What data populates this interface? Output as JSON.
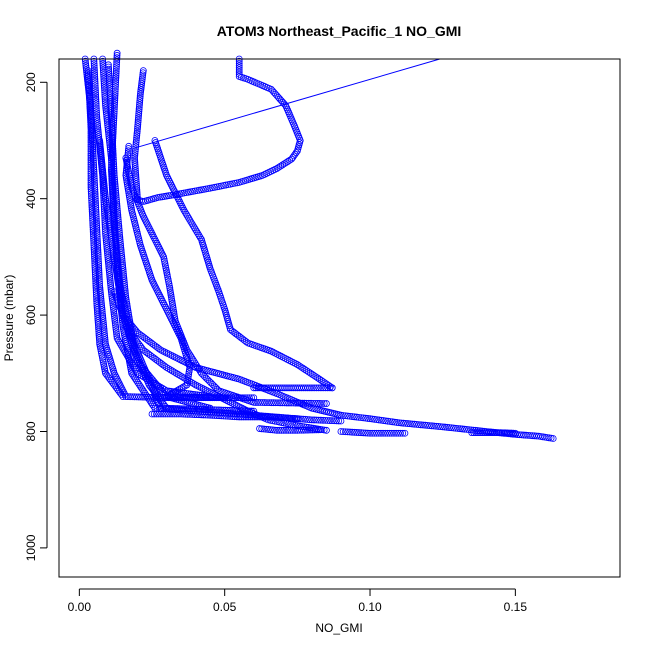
{
  "chart_data": {
    "type": "scatter",
    "title": "ATOM3 Northeast_Pacific_1 NO_GMI",
    "xlabel": "NO_GMI",
    "ylabel": "Pressure (mbar)",
    "xlim": [
      -0.007,
      0.186
    ],
    "ylim": [
      1050,
      160
    ],
    "y_reversed": true,
    "grid": false,
    "legend": "none",
    "marker": "open-circle",
    "color": "#0000ff",
    "x_ticks": [
      {
        "value": 0.0,
        "label": "0.00"
      },
      {
        "value": 0.05,
        "label": "0.05"
      },
      {
        "value": 0.1,
        "label": "0.10"
      },
      {
        "value": 0.15,
        "label": "0.15"
      }
    ],
    "y_ticks": [
      {
        "value": 200,
        "label": "200"
      },
      {
        "value": 400,
        "label": "400"
      },
      {
        "value": 600,
        "label": "600"
      },
      {
        "value": 800,
        "label": "800"
      },
      {
        "value": 1000,
        "label": "1000"
      }
    ],
    "profiles": [
      {
        "points": [
          [
            0.002,
            160
          ],
          [
            0.004,
            250
          ],
          [
            0.005,
            350
          ],
          [
            0.006,
            450
          ],
          [
            0.007,
            550
          ],
          [
            0.009,
            650
          ],
          [
            0.012,
            700
          ],
          [
            0.016,
            740
          ],
          [
            0.03,
            742
          ],
          [
            0.06,
            742
          ]
        ]
      },
      {
        "points": [
          [
            0.005,
            160
          ],
          [
            0.006,
            260
          ],
          [
            0.008,
            360
          ],
          [
            0.009,
            460
          ],
          [
            0.011,
            560
          ],
          [
            0.013,
            640
          ],
          [
            0.02,
            700
          ],
          [
            0.03,
            730
          ],
          [
            0.045,
            740
          ]
        ]
      },
      {
        "points": [
          [
            0.008,
            160
          ],
          [
            0.009,
            240
          ],
          [
            0.011,
            330
          ],
          [
            0.012,
            430
          ],
          [
            0.013,
            520
          ],
          [
            0.015,
            620
          ],
          [
            0.018,
            700
          ],
          [
            0.026,
            760
          ],
          [
            0.055,
            770
          ],
          [
            0.08,
            780
          ],
          [
            0.09,
            782
          ]
        ]
      },
      {
        "points": [
          [
            0.01,
            170
          ],
          [
            0.011,
            260
          ],
          [
            0.012,
            360
          ],
          [
            0.014,
            470
          ],
          [
            0.016,
            570
          ],
          [
            0.019,
            660
          ],
          [
            0.024,
            720
          ],
          [
            0.03,
            760
          ],
          [
            0.06,
            765
          ]
        ]
      },
      {
        "points": [
          [
            0.003,
            180
          ],
          [
            0.004,
            280
          ],
          [
            0.004,
            380
          ],
          [
            0.005,
            480
          ],
          [
            0.006,
            580
          ],
          [
            0.007,
            650
          ],
          [
            0.009,
            700
          ],
          [
            0.015,
            740
          ]
        ]
      },
      {
        "points": [
          [
            0.017,
            310
          ],
          [
            0.016,
            360
          ],
          [
            0.018,
            420
          ],
          [
            0.021,
            480
          ],
          [
            0.025,
            540
          ],
          [
            0.03,
            590
          ],
          [
            0.035,
            640
          ],
          [
            0.038,
            690
          ],
          [
            0.037,
            720
          ],
          [
            0.03,
            740
          ],
          [
            0.05,
            742
          ]
        ]
      },
      {
        "points": [
          [
            0.016,
            330
          ],
          [
            0.018,
            380
          ],
          [
            0.022,
            430
          ],
          [
            0.026,
            470
          ],
          [
            0.029,
            500
          ],
          [
            0.031,
            550
          ],
          [
            0.033,
            610
          ],
          [
            0.037,
            660
          ],
          [
            0.042,
            700
          ],
          [
            0.048,
            730
          ],
          [
            0.06,
            750
          ],
          [
            0.085,
            752
          ]
        ]
      },
      {
        "points": [
          [
            0.022,
            180
          ],
          [
            0.021,
            220
          ],
          [
            0.02,
            280
          ],
          [
            0.019,
            330
          ],
          [
            0.02,
            400
          ]
        ]
      },
      {
        "points": [
          [
            0.02,
            402
          ],
          [
            0.022,
            405
          ],
          [
            0.027,
            398
          ],
          [
            0.033,
            393
          ],
          [
            0.045,
            382
          ],
          [
            0.055,
            372
          ],
          [
            0.063,
            360
          ],
          [
            0.068,
            348
          ],
          [
            0.073,
            332
          ],
          [
            0.075,
            318
          ],
          [
            0.076,
            300
          ],
          [
            0.074,
            275
          ],
          [
            0.071,
            240
          ],
          [
            0.066,
            212
          ],
          [
            0.058,
            195
          ],
          [
            0.055,
            190
          ],
          [
            0.055,
            175
          ],
          [
            0.055,
            160
          ]
        ]
      },
      {
        "points": [
          [
            0.026,
            300
          ],
          [
            0.03,
            360
          ],
          [
            0.036,
            420
          ],
          [
            0.042,
            470
          ],
          [
            0.045,
            520
          ],
          [
            0.048,
            560
          ],
          [
            0.05,
            590
          ],
          [
            0.052,
            625
          ],
          [
            0.058,
            648
          ],
          [
            0.066,
            662
          ],
          [
            0.075,
            685
          ],
          [
            0.082,
            708
          ],
          [
            0.087,
            725
          ]
        ]
      },
      {
        "points": [
          [
            0.06,
            725
          ],
          [
            0.065,
            725
          ],
          [
            0.07,
            725
          ],
          [
            0.075,
            725
          ],
          [
            0.08,
            725
          ],
          [
            0.087,
            725
          ]
        ]
      },
      {
        "points": [
          [
            0.012,
            560
          ],
          [
            0.015,
            600
          ],
          [
            0.02,
            630
          ],
          [
            0.028,
            660
          ],
          [
            0.04,
            690
          ],
          [
            0.055,
            710
          ],
          [
            0.068,
            735
          ],
          [
            0.08,
            760
          ],
          [
            0.09,
            772
          ],
          [
            0.1,
            778
          ],
          [
            0.11,
            785
          ],
          [
            0.125,
            792
          ],
          [
            0.14,
            800
          ],
          [
            0.15,
            805
          ],
          [
            0.158,
            808
          ],
          [
            0.163,
            812
          ]
        ]
      },
      {
        "points": [
          [
            0.016,
            620
          ],
          [
            0.022,
            660
          ],
          [
            0.03,
            690
          ],
          [
            0.04,
            720
          ],
          [
            0.05,
            745
          ],
          [
            0.058,
            765
          ],
          [
            0.065,
            780
          ],
          [
            0.075,
            790
          ],
          [
            0.085,
            798
          ]
        ]
      },
      {
        "points": [
          [
            0.025,
            770
          ],
          [
            0.035,
            770
          ],
          [
            0.045,
            772
          ],
          [
            0.055,
            775
          ],
          [
            0.065,
            775
          ],
          [
            0.075,
            778
          ]
        ]
      },
      {
        "points": [
          [
            0.062,
            795
          ],
          [
            0.068,
            798
          ],
          [
            0.075,
            798
          ],
          [
            0.083,
            797
          ]
        ]
      },
      {
        "points": [
          [
            0.09,
            800
          ],
          [
            0.1,
            803
          ],
          [
            0.112,
            803
          ]
        ]
      },
      {
        "points": [
          [
            0.135,
            802
          ],
          [
            0.14,
            802
          ],
          [
            0.145,
            802
          ],
          [
            0.15,
            803
          ]
        ]
      },
      {
        "points": [
          [
            0.013,
            150
          ],
          [
            0.012,
            250
          ],
          [
            0.011,
            350
          ],
          [
            0.012,
            450
          ],
          [
            0.014,
            550
          ],
          [
            0.018,
            640
          ],
          [
            0.024,
            710
          ],
          [
            0.028,
            760
          ]
        ]
      },
      {
        "points": [
          [
            0.007,
            300
          ],
          [
            0.009,
            400
          ],
          [
            0.012,
            500
          ],
          [
            0.015,
            600
          ],
          [
            0.02,
            680
          ],
          [
            0.03,
            740
          ],
          [
            0.045,
            760
          ]
        ]
      }
    ],
    "line_segment": {
      "from": [
        0.019,
        313
      ],
      "to": [
        0.124,
        160
      ]
    }
  }
}
